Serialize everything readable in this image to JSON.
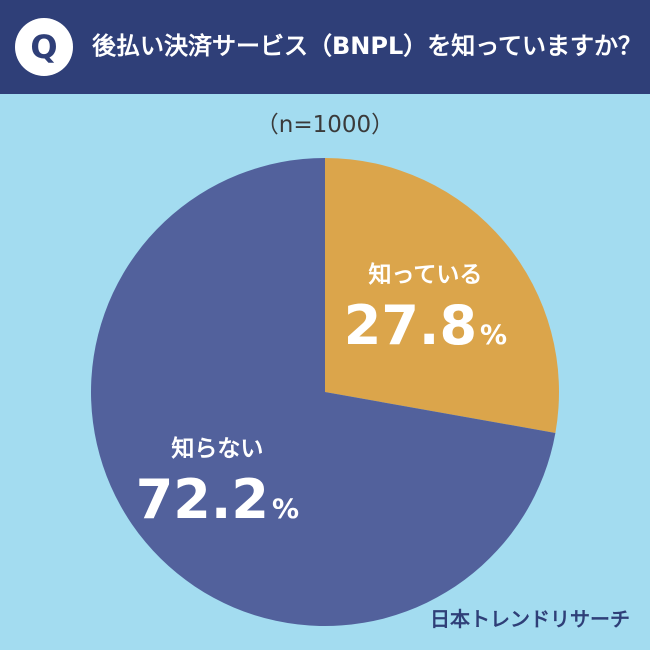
{
  "header": {
    "badge": "Q",
    "question": "後払い決済サービス（BNPL）を知っていますか？"
  },
  "sample_size": "（n=1000）",
  "brand": "日本トレンドリサーチ",
  "colors": {
    "background": "#a3dcf0",
    "header": "#2f3f78",
    "know": "#dba54b",
    "dont_know": "#52619c"
  },
  "chart_data": {
    "type": "pie",
    "unit": "%",
    "slices": [
      {
        "label": "知っている",
        "value": 27.8,
        "value_text": "27.8",
        "color": "#dba54b"
      },
      {
        "label": "知らない",
        "value": 72.2,
        "value_text": "72.2",
        "color": "#52619c"
      }
    ]
  }
}
